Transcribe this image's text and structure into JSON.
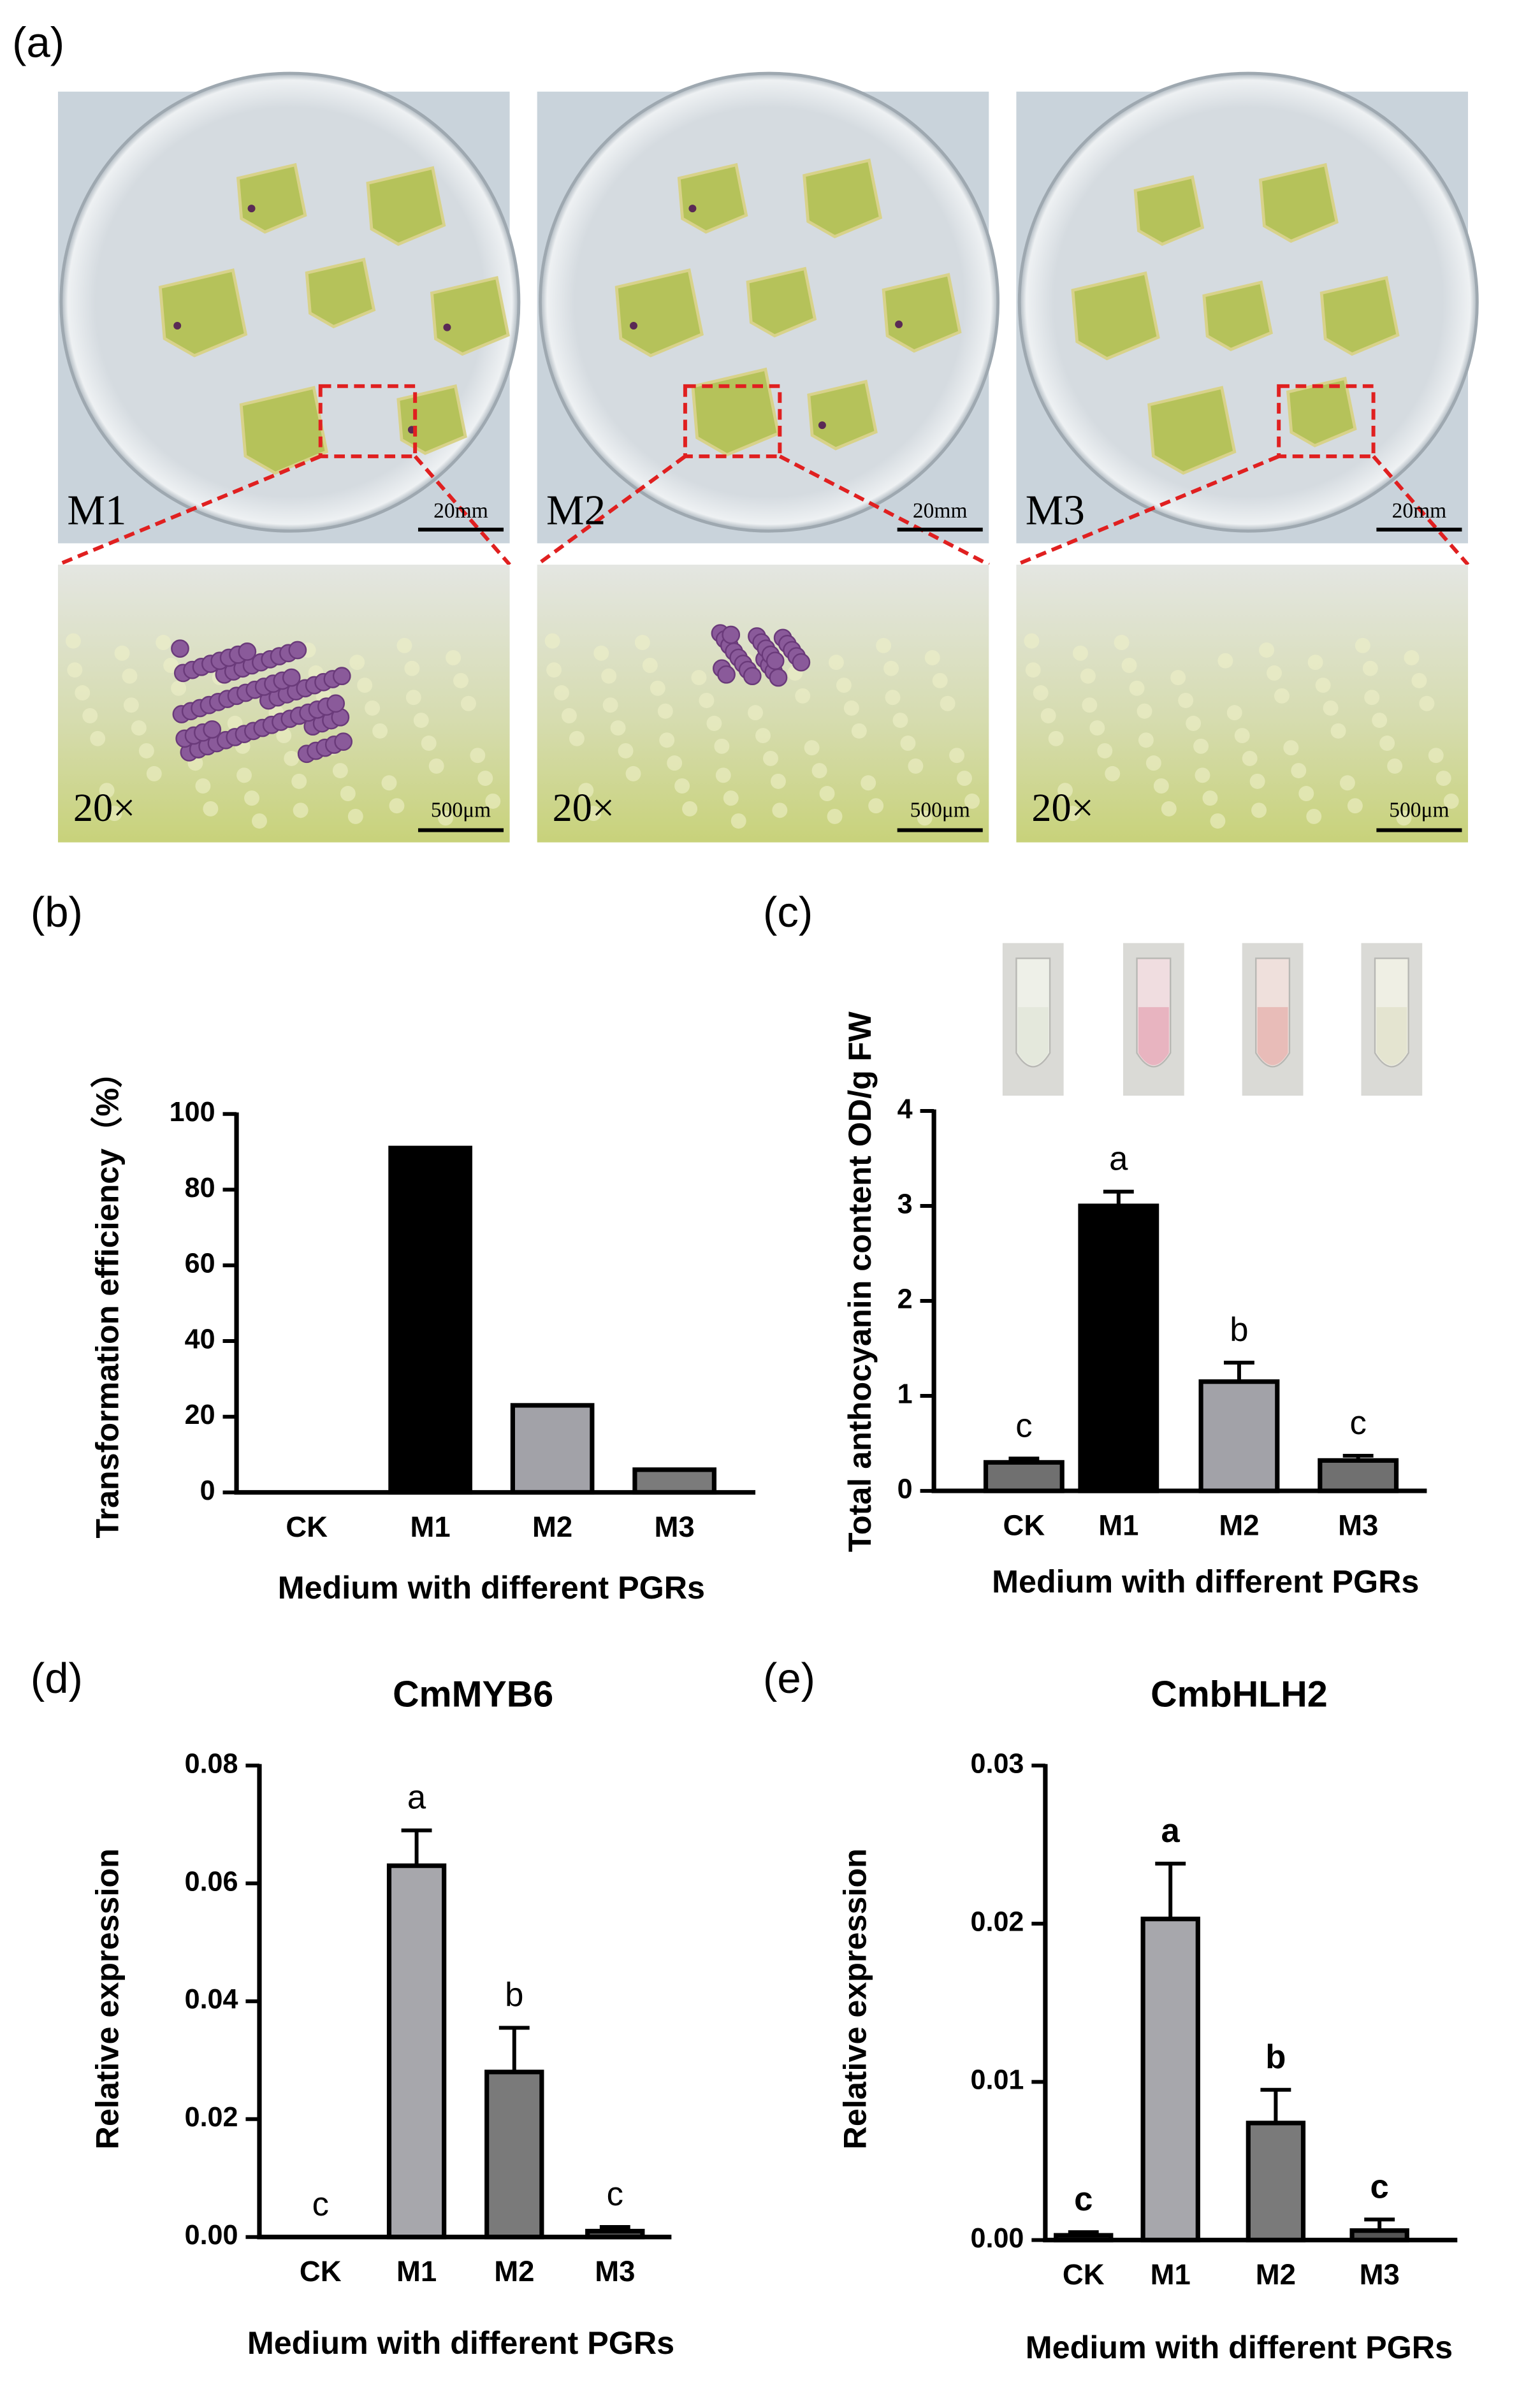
{
  "panel_a": {
    "label": "(a)",
    "plates": [
      {
        "name": "M1",
        "scale": "20mm",
        "zoom": "20×",
        "zoom_scale": "500μm"
      },
      {
        "name": "M2",
        "scale": "20mm",
        "zoom": "20×",
        "zoom_scale": "500μm"
      },
      {
        "name": "M3",
        "scale": "20mm",
        "zoom": "20×",
        "zoom_scale": "500μm"
      }
    ]
  },
  "chart_data": [
    {
      "type": "bar",
      "label": "(b)",
      "y_label": "Transformation efficiency（%）",
      "x_label": "Medium with different PGRs",
      "categories": [
        "CK",
        "M1",
        "M2",
        "M3"
      ],
      "values": [
        0,
        91,
        23,
        6
      ],
      "colors": [
        "#ffffff",
        "#000000",
        "#a2a2a8",
        "#7b7b7b"
      ],
      "ylim": [
        0,
        100
      ],
      "yticks": [
        0,
        20,
        40,
        60,
        80,
        100
      ]
    },
    {
      "type": "bar",
      "label": "(c)",
      "y_label": "Total anthocyanin content OD/g FW",
      "x_label": "Medium with different PGRs",
      "categories": [
        "CK",
        "M1",
        "M2",
        "M3"
      ],
      "values": [
        0.3,
        3.0,
        1.15,
        0.32
      ],
      "errors": [
        0.04,
        0.15,
        0.2,
        0.05
      ],
      "letters": [
        "c",
        "a",
        "b",
        "c"
      ],
      "colors": [
        "#707070",
        "#000000",
        "#a2a2a8",
        "#707070"
      ],
      "ylim": [
        0,
        4
      ],
      "yticks": [
        0,
        1,
        2,
        3,
        4
      ]
    },
    {
      "type": "bar",
      "label": "(d)",
      "title": "CmMYB6",
      "y_label": "Relative expression",
      "x_label": "Medium with different PGRs",
      "categories": [
        "CK",
        "M1",
        "M2",
        "M3"
      ],
      "values": [
        0,
        0.063,
        0.028,
        0.001
      ],
      "errors": [
        0,
        0.006,
        0.0075,
        0.0007
      ],
      "letters": [
        "c",
        "a",
        "b",
        "c"
      ],
      "colors": [
        "#ffffff",
        "#a7a7ac",
        "#7a7a7a",
        "#555555"
      ],
      "ylim": [
        0,
        0.08
      ],
      "yticks": [
        {
          "value": 0,
          "label": "0.00"
        },
        {
          "value": 0.02,
          "label": "0.02"
        },
        {
          "value": 0.04,
          "label": "0.04"
        },
        {
          "value": 0.06,
          "label": "0.06"
        },
        {
          "value": 0.08,
          "label": "0.08"
        }
      ]
    },
    {
      "type": "bar",
      "label": "(e)",
      "title": "CmbHLH2",
      "y_label": "Relative expression",
      "x_label": "Medium with different PGRs",
      "categories": [
        "CK",
        "M1",
        "M2",
        "M3"
      ],
      "values": [
        0.0003,
        0.0203,
        0.0074,
        0.0006
      ],
      "errors": [
        0.0002,
        0.0035,
        0.0021,
        0.0007
      ],
      "letters": [
        "c",
        "a",
        "b",
        "c"
      ],
      "letters_bold": true,
      "colors": [
        "#555555",
        "#a7a7ac",
        "#7a7a7a",
        "#555555"
      ],
      "ylim": [
        0,
        0.03
      ],
      "yticks": [
        {
          "value": 0,
          "label": "0.00"
        },
        {
          "value": 0.01,
          "label": "0.01"
        },
        {
          "value": 0.02,
          "label": "0.02"
        },
        {
          "value": 0.03,
          "label": "0.03"
        }
      ]
    }
  ]
}
